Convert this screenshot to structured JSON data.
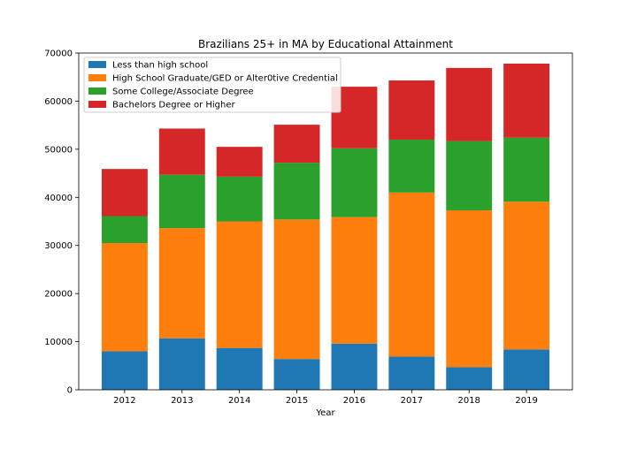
{
  "chart_data": {
    "type": "bar",
    "stacked": true,
    "title": "Brazilians 25+ in MA by Educational Attainment",
    "xlabel": "Year",
    "ylabel": "",
    "ylim": [
      0,
      70000
    ],
    "yticks": [
      0,
      10000,
      20000,
      30000,
      40000,
      50000,
      60000,
      70000
    ],
    "grid": false,
    "legend_position": "upper-left",
    "categories": [
      "2012",
      "2013",
      "2014",
      "2015",
      "2016",
      "2017",
      "2018",
      "2019"
    ],
    "series": [
      {
        "name": "Less than high school",
        "color": "#1f77b4",
        "values": [
          8000,
          10700,
          8700,
          6400,
          9600,
          6900,
          4700,
          8400
        ]
      },
      {
        "name": "High School Graduate/GED or Alter0tive Credential",
        "color": "#ff7f0e",
        "values": [
          22500,
          22900,
          26300,
          29000,
          26300,
          34100,
          32600,
          30700
        ]
      },
      {
        "name": "Some College/Associate Degree",
        "color": "#2ca02c",
        "values": [
          5600,
          11100,
          9300,
          11800,
          14300,
          11000,
          14400,
          13300
        ]
      },
      {
        "name": "Bachelors Degree or Higher",
        "color": "#d62728",
        "values": [
          9800,
          9600,
          6200,
          7900,
          12800,
          12300,
          15200,
          15400
        ]
      }
    ]
  }
}
